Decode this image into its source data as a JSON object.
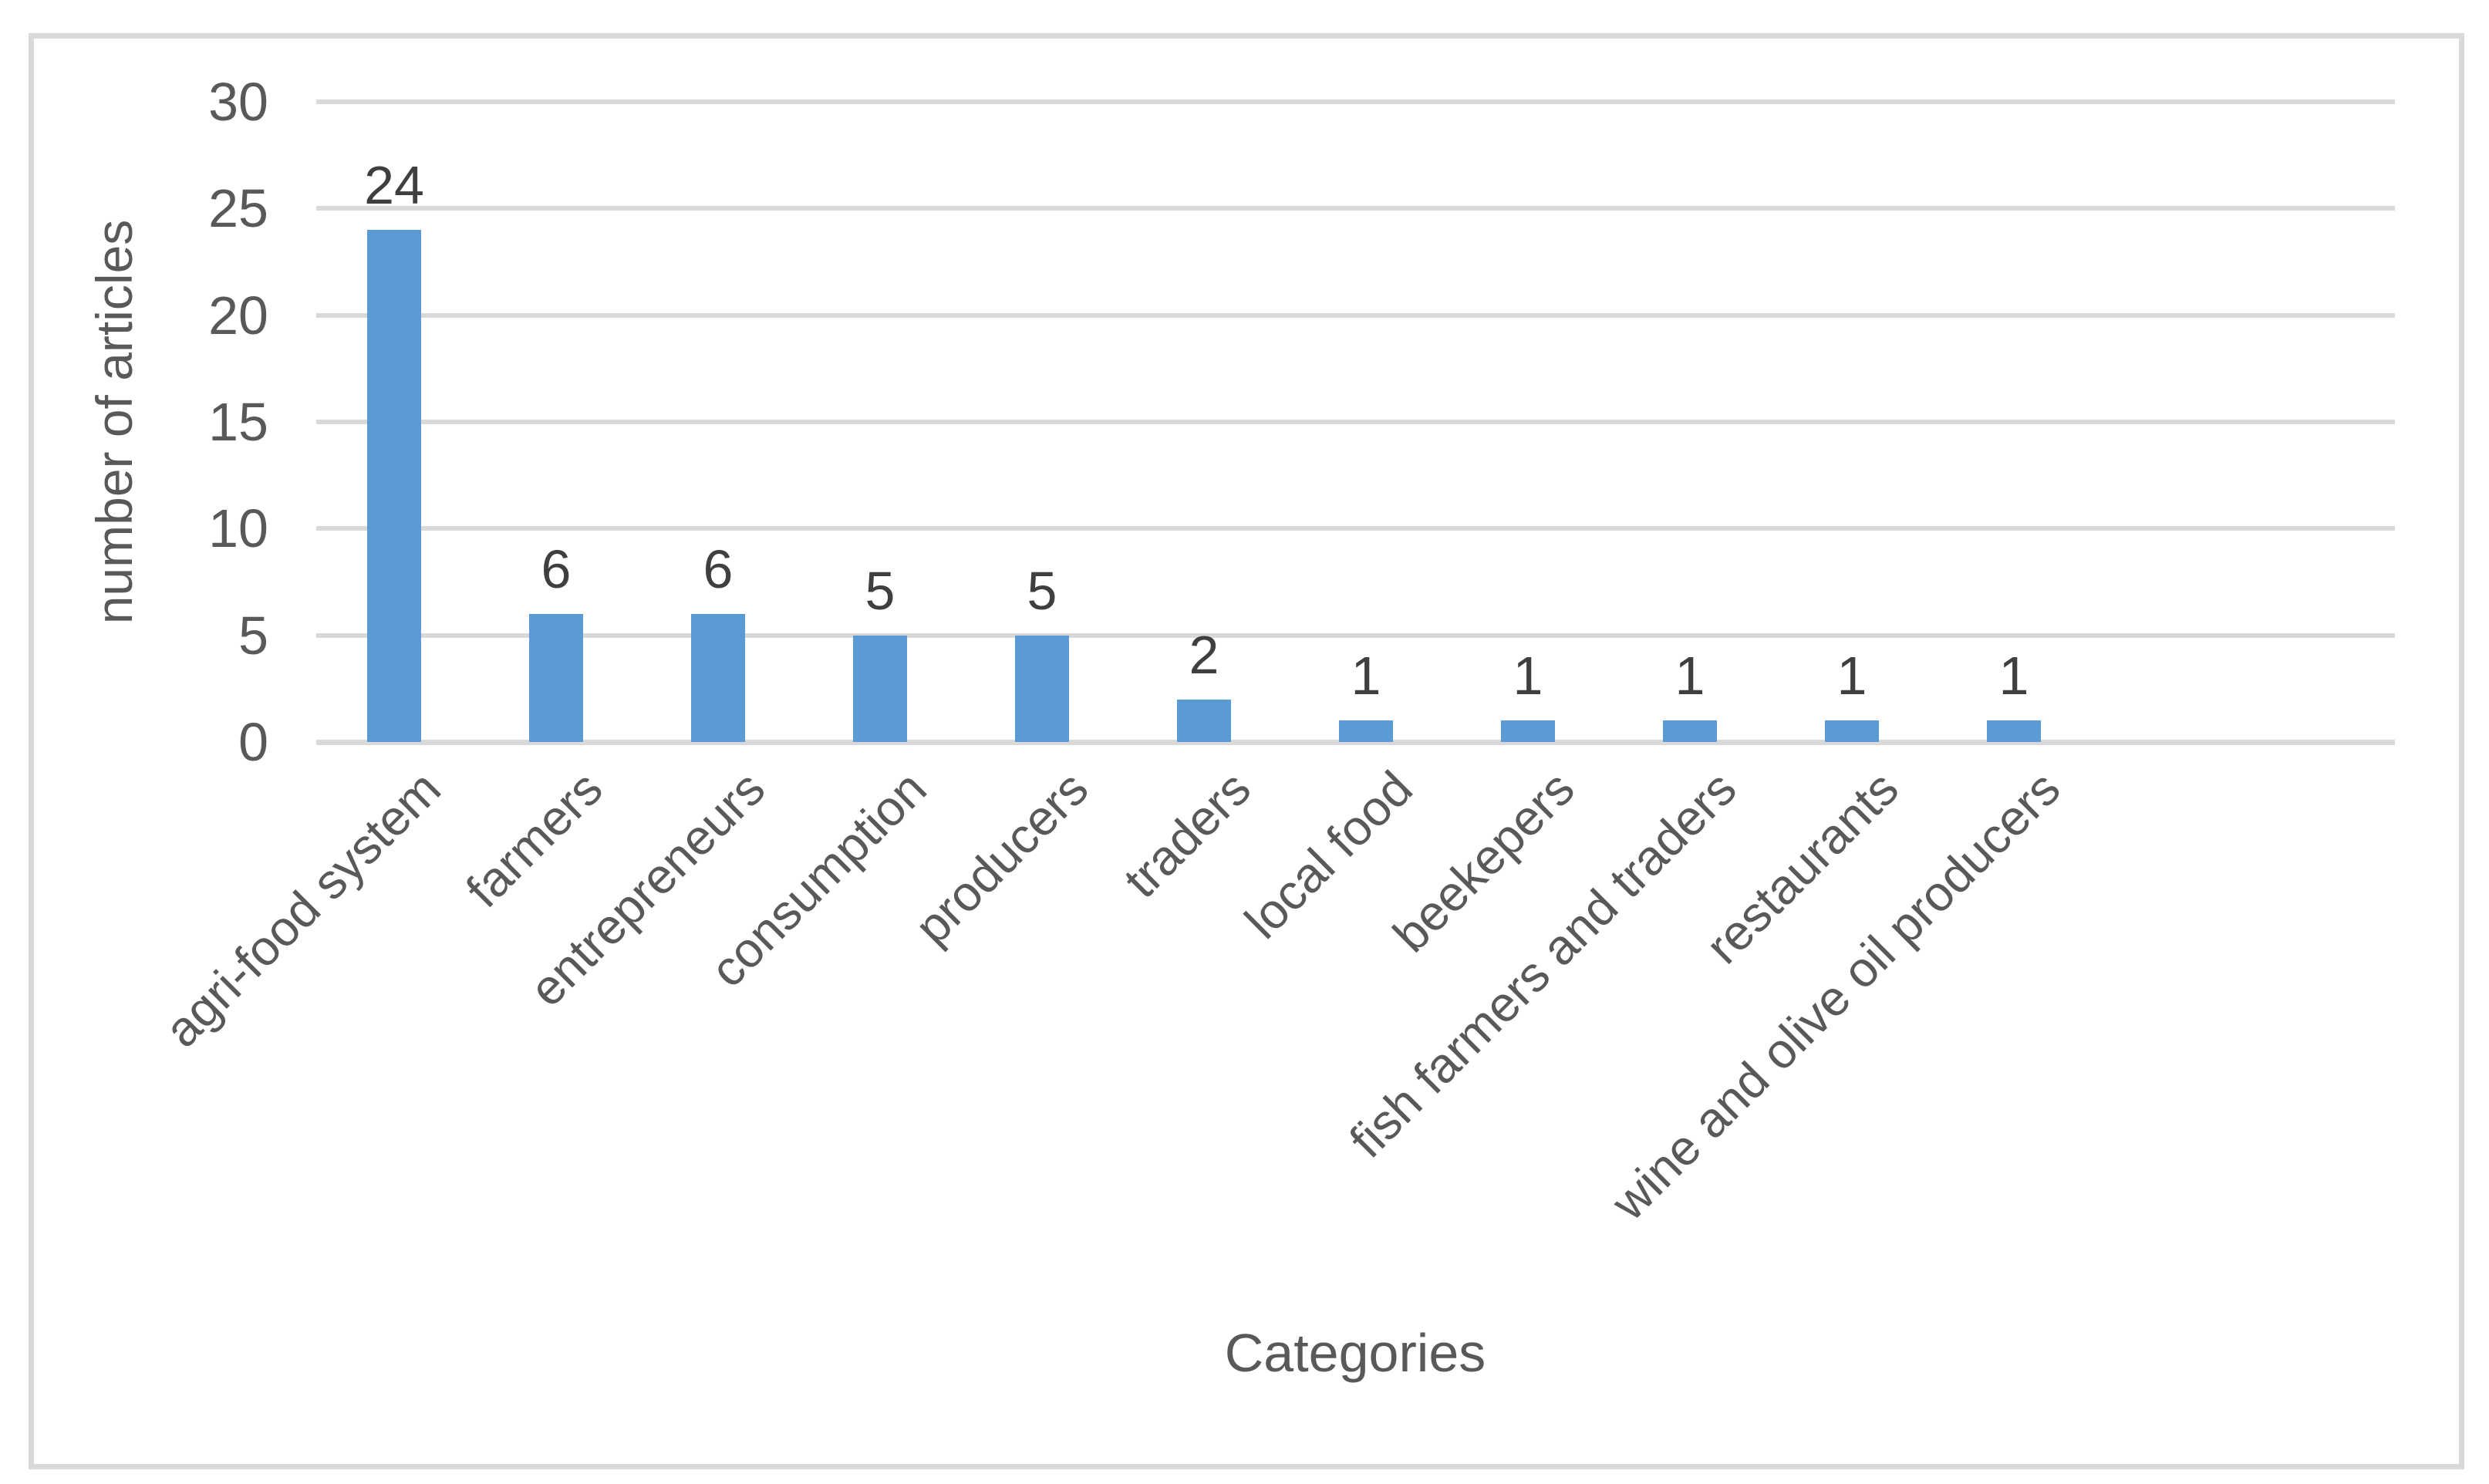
{
  "chart_data": {
    "type": "bar",
    "title": "",
    "xlabel": "Categories",
    "ylabel": "number of articles",
    "categories": [
      "agri-food system",
      "farmers",
      "entrepreneurs",
      "consumption",
      "producers",
      "traders",
      "local food",
      "beekepers",
      "fish farmers and traders",
      "restaurants",
      "wine and olive oil producers"
    ],
    "values": [
      24,
      6,
      6,
      5,
      5,
      2,
      1,
      1,
      1,
      1,
      1
    ],
    "data_labels_shown": true,
    "ylim": [
      0,
      30
    ],
    "yticks": [
      0,
      5,
      10,
      15,
      20,
      25,
      30
    ],
    "grid": true,
    "legend_position": "none",
    "colors": {
      "bar": "#5B9BD5",
      "gridline": "#D9D9D9",
      "axis_line": "#D9D9D9",
      "frame_border": "#D9D9D9",
      "axis_text": "#595959",
      "data_label_text": "#3F3F3F",
      "background": "#FFFFFF"
    }
  }
}
